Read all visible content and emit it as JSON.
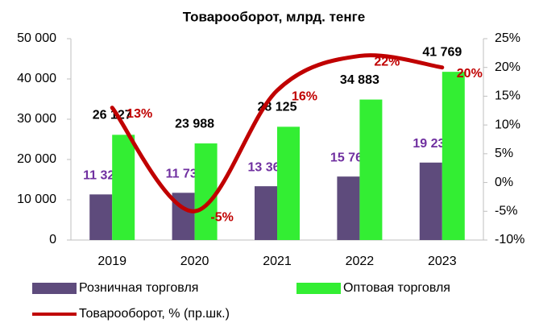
{
  "chart_data": {
    "type": "bar_line",
    "title": "Товарооборот, млрд. тенге",
    "categories": [
      "2019",
      "2020",
      "2021",
      "2022",
      "2023"
    ],
    "series": [
      {
        "name": "Розничная торговля",
        "color": "#5e4b7c",
        "type": "bar",
        "values": [
          11328,
          11730,
          13364,
          15764,
          19234
        ],
        "value_labels": [
          "11 328",
          "11 730",
          "13 364",
          "15 764",
          "19 234"
        ],
        "label_color": "#7030a0"
      },
      {
        "name": "Оптовая торговля",
        "color": "#33ee33",
        "type": "bar",
        "values": [
          26127,
          23988,
          28125,
          34883,
          41769
        ],
        "value_labels": [
          "26 127",
          "23 988",
          "28 125",
          "34 883",
          "41 769"
        ],
        "label_color": "#000000"
      },
      {
        "name": "Товарооборот, % (пр.шк.)",
        "color": "#c00000",
        "type": "line",
        "axis": "y2",
        "values": [
          13,
          -5,
          16,
          22,
          20
        ],
        "value_labels": [
          "13%",
          "-5%",
          "16%",
          "22%",
          "20%"
        ],
        "label_color": "#c00000"
      }
    ],
    "ylim": [
      0,
      50000
    ],
    "yticks": [
      0,
      {
        "value": 10000,
        "label": "10 000"
      },
      {
        "value": 20000,
        "label": "20 000"
      },
      {
        "value": 30000,
        "label": "30 000"
      },
      {
        "value": 40000,
        "label": "40 000"
      },
      {
        "value": 50000,
        "label": "50 000"
      }
    ],
    "y2lim": [
      -10,
      25
    ],
    "y2ticks": [
      {
        "value": -10,
        "label": "-10%"
      },
      {
        "value": -5,
        "label": "-5%"
      },
      {
        "value": 0,
        "label": "0%"
      },
      {
        "value": 5,
        "label": "5%"
      },
      {
        "value": 10,
        "label": "10%"
      },
      {
        "value": 15,
        "label": "15%"
      },
      {
        "value": 20,
        "label": "20%"
      },
      {
        "value": 25,
        "label": "25%"
      }
    ]
  }
}
